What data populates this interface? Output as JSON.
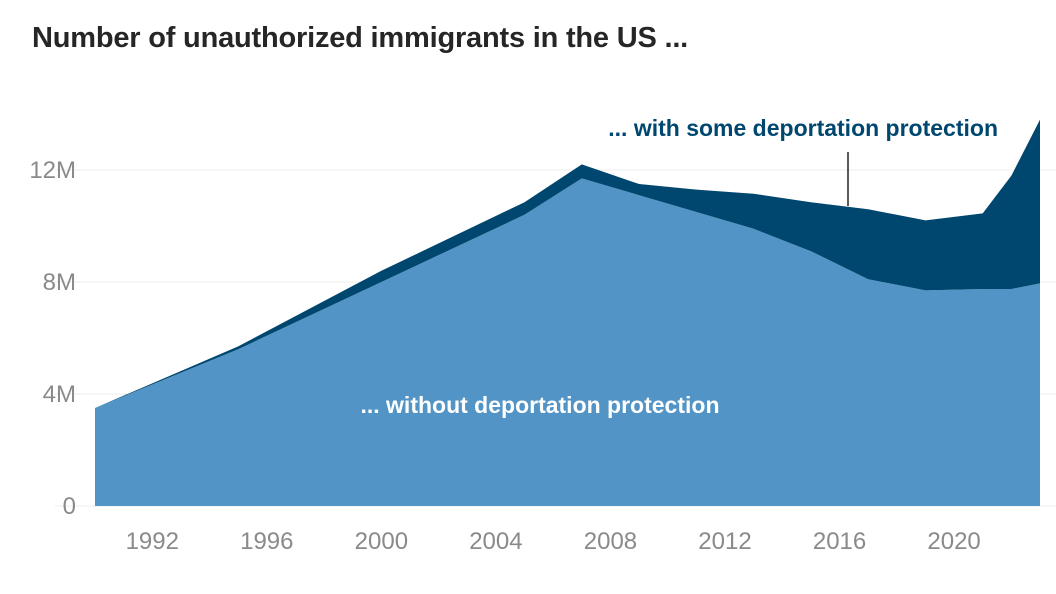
{
  "chart_data": {
    "type": "area",
    "stacked": true,
    "title": "Number of unauthorized immigrants in the US ...",
    "x_ticks": [
      "1992",
      "1996",
      "2000",
      "2004",
      "2008",
      "2012",
      "2016",
      "2020"
    ],
    "y_ticks": [
      "0",
      "4M",
      "8M",
      "12M"
    ],
    "ylim": [
      0,
      14
    ],
    "grid": true,
    "x": [
      1990,
      1995,
      2000,
      2005,
      2007,
      2009,
      2011,
      2013,
      2015,
      2017,
      2019,
      2021,
      2022,
      2023
    ],
    "series": [
      {
        "name": "... without deportation protection",
        "color": "#5294c5",
        "values": [
          3.5,
          5.6,
          8.0,
          10.4,
          11.7,
          11.1,
          10.5,
          9.9,
          9.1,
          8.1,
          7.7,
          7.75,
          7.75,
          7.95
        ]
      },
      {
        "name": "... with some deportation protection",
        "color": "#00476f",
        "values": [
          0.0,
          0.1,
          0.4,
          0.45,
          0.5,
          0.4,
          0.8,
          1.25,
          1.75,
          2.5,
          2.5,
          2.7,
          4.05,
          5.85
        ]
      }
    ]
  }
}
